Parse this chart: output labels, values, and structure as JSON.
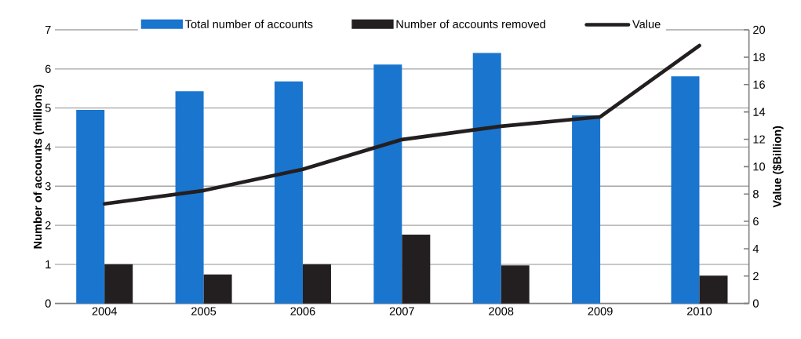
{
  "chart_data": {
    "type": "bar",
    "categories": [
      "2004",
      "2005",
      "2006",
      "2007",
      "2008",
      "2009",
      "2010"
    ],
    "series": [
      {
        "name": "Total number of accounts",
        "color": "#1a75cf",
        "values": [
          4.95,
          5.43,
          5.68,
          6.11,
          6.41,
          4.81,
          5.81
        ]
      },
      {
        "name": "Number of accounts removed",
        "color": "#231f20",
        "values": [
          1.0,
          0.74,
          1.0,
          1.76,
          0.97,
          null,
          0.71
        ]
      },
      {
        "name": "Value",
        "type": "line",
        "axis": "y2",
        "color": "#231f20",
        "values": [
          7.28,
          8.25,
          9.8,
          11.98,
          12.95,
          13.64,
          18.85
        ]
      }
    ],
    "ylabel": "Number of accounts (millions)",
    "y2label": "Value ($Billion)",
    "ylim": [
      0,
      7
    ],
    "yticks": [
      0,
      1,
      2,
      3,
      4,
      5,
      6,
      7
    ],
    "y2lim": [
      0,
      20
    ],
    "y2ticks": [
      0,
      2,
      4,
      6,
      8,
      10,
      12,
      14,
      16,
      18,
      20
    ],
    "grid": "y",
    "legend": "top",
    "marker": "none",
    "line_style": "solid"
  }
}
